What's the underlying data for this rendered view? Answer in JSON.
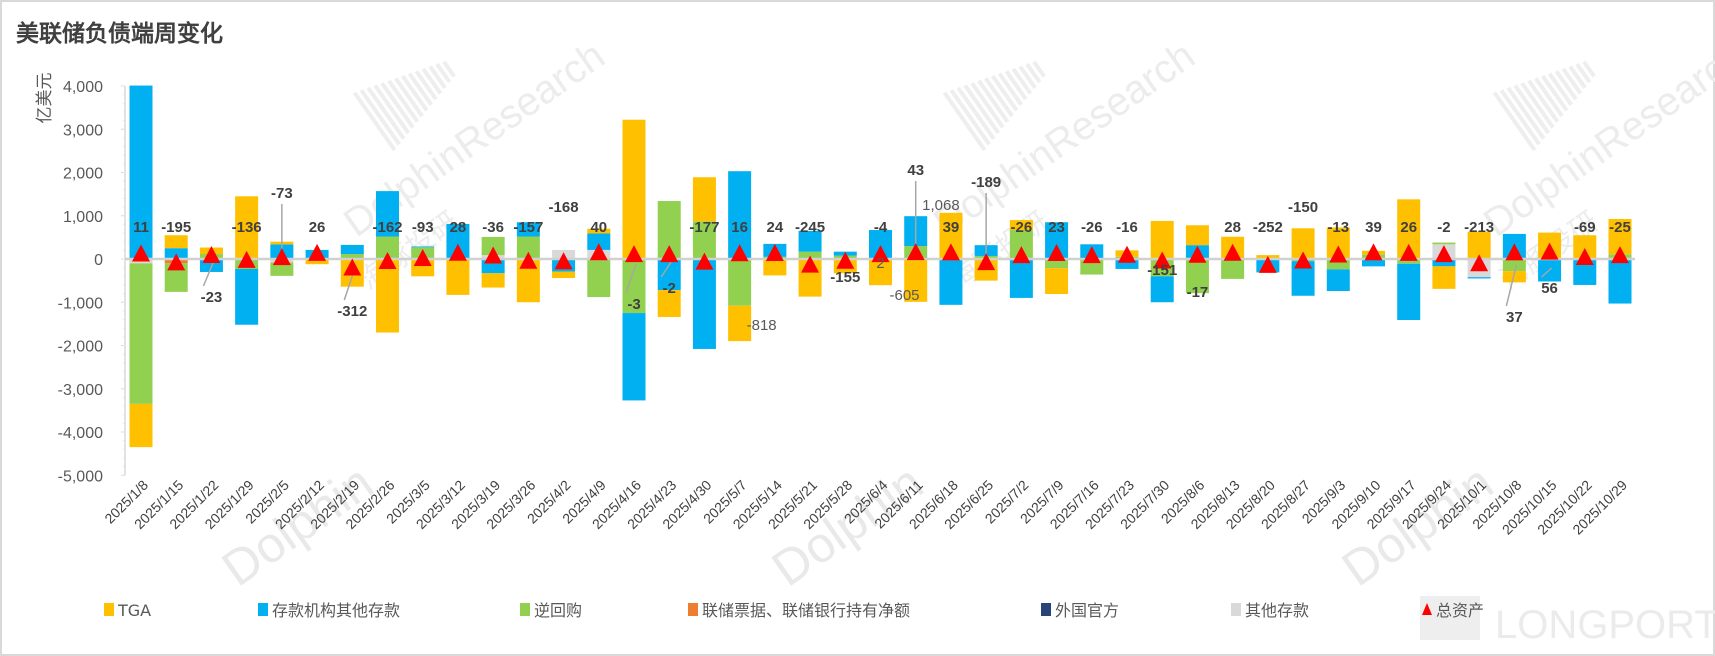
{
  "chart_data": {
    "type": "bar",
    "stacked": true,
    "title": "美联储负债端周变化",
    "ylabel": "亿美元",
    "xlabel": "",
    "ylim": [
      -5000,
      4000
    ],
    "yticks": [
      4000,
      3000,
      2000,
      1000,
      0,
      -1000,
      -2000,
      -3000,
      -4000,
      -5000
    ],
    "ytick_labels": [
      "4,000",
      "3,000",
      "2,000",
      "1,000",
      "0",
      "-1,000",
      "-2,000",
      "-3,000",
      "-4,000",
      "-5,000"
    ],
    "legend_position": "bottom",
    "categories": [
      "2025/1/8",
      "2025/1/15",
      "2025/1/22",
      "2025/1/29",
      "2025/2/5",
      "2025/2/12",
      "2025/2/19",
      "2025/2/26",
      "2025/3/5",
      "2025/3/12",
      "2025/3/19",
      "2025/3/26",
      "2025/4/2",
      "2025/4/9",
      "2025/4/16",
      "2025/4/23",
      "2025/4/30",
      "2025/5/7",
      "2025/5/14",
      "2025/5/21",
      "2025/5/28",
      "2025/6/4",
      "2025/6/11",
      "2025/6/18",
      "2025/6/25",
      "2025/7/2",
      "2025/7/9",
      "2025/7/16",
      "2025/7/23",
      "2025/7/30",
      "2025/8/6",
      "2025/8/13",
      "2025/8/20",
      "2025/8/27",
      "2025/9/3",
      "2025/9/10",
      "2025/9/17",
      "2025/9/24",
      "2025/10/1",
      "2025/10/8",
      "2025/10/15",
      "2025/10/22",
      "2025/10/29"
    ],
    "series": [
      {
        "name": "TGA",
        "color": "#FFC000",
        "values": [
          -1000,
          300,
          150,
          1450,
          60,
          -120,
          -640,
          -1700,
          -400,
          -830,
          -330,
          -1000,
          -150,
          110,
          3220,
          -620,
          1020,
          -818,
          -380,
          -870,
          -330,
          -605,
          -990,
          1068,
          -500,
          230,
          -600,
          0,
          150,
          880,
          460,
          515,
          90,
          710,
          730,
          80,
          1380,
          -520,
          630,
          -260,
          610,
          550,
          815
        ]
      },
      {
        "name": "存款机构其他存款",
        "color": "#00B0F0",
        "values": [
          4010,
          250,
          -300,
          -1290,
          340,
          210,
          210,
          1050,
          20,
          810,
          -330,
          330,
          -290,
          380,
          -2020,
          -720,
          -2080,
          2030,
          300,
          480,
          90,
          670,
          690,
          -1060,
          250,
          -900,
          850,
          340,
          -230,
          -600,
          320,
          0,
          -310,
          -800,
          -500,
          -170,
          -1300,
          -170,
          -30,
          580,
          -520,
          -600,
          -1030
        ]
      },
      {
        "name": "逆回购",
        "color": "#92D050",
        "values": [
          -3250,
          -660,
          115,
          -230,
          -310,
          0,
          115,
          520,
          270,
          0,
          420,
          520,
          0,
          -880,
          -1250,
          1340,
          870,
          -1080,
          50,
          170,
          80,
          0,
          300,
          0,
          70,
          670,
          -210,
          -360,
          50,
          -400,
          -790,
          -460,
          0,
          -50,
          -240,
          110,
          -110,
          40,
          0,
          -280,
          0,
          0,
          110
        ]
      },
      {
        "name": "联储票据、联储银行持有净额",
        "color": "#ED7D31",
        "values": [
          0,
          -100,
          0,
          0,
          0,
          0,
          0,
          0,
          0,
          0,
          0,
          0,
          0,
          0,
          0,
          0,
          0,
          0,
          0,
          0,
          0,
          0,
          0,
          0,
          0,
          0,
          0,
          0,
          0,
          0,
          0,
          0,
          0,
          0,
          0,
          0,
          0,
          0,
          0,
          0,
          0,
          0,
          0
        ]
      },
      {
        "name": "外国官方",
        "color": "#264478",
        "values": [
          0,
          0,
          0,
          0,
          0,
          0,
          0,
          0,
          0,
          0,
          0,
          0,
          0,
          0,
          0,
          0,
          0,
          0,
          0,
          0,
          0,
          0,
          0,
          0,
          0,
          0,
          0,
          0,
          0,
          0,
          0,
          0,
          0,
          0,
          0,
          0,
          0,
          0,
          0,
          0,
          0,
          0,
          0
        ]
      },
      {
        "name": "其他存款",
        "color": "#D9D9D9",
        "values": [
          -100,
          0,
          0,
          0,
          -80,
          0,
          0,
          0,
          0,
          0,
          90,
          0,
          210,
          210,
          0,
          0,
          0,
          0,
          0,
          0,
          0,
          0,
          0,
          0,
          0,
          0,
          0,
          0,
          0,
          0,
          0,
          0,
          0,
          0,
          0,
          0,
          0,
          340,
          -420,
          0,
          0,
          0,
          0
        ]
      }
    ],
    "total_series": {
      "name": "总资产",
      "color": "#FF0000",
      "marker": "triangle",
      "values": [
        11,
        -195,
        -23,
        -136,
        -73,
        26,
        -312,
        -162,
        -93,
        28,
        -36,
        -157,
        -168,
        40,
        -3,
        -2,
        -177,
        16,
        24,
        -245,
        -155,
        -4,
        43,
        39,
        -189,
        -26,
        23,
        -26,
        -16,
        -151,
        -17,
        28,
        -252,
        -150,
        -13,
        39,
        26,
        -2,
        -213,
        37,
        56,
        -69,
        -25
      ],
      "labels": [
        "11",
        "-195",
        "-23",
        "-136",
        "-73",
        "26",
        "-312",
        "-162",
        "-93",
        "28",
        "-36",
        "-157",
        "-168",
        "40",
        "-3",
        "-2",
        "-177",
        "16",
        "24",
        "-245",
        "-155",
        "-4",
        "43",
        "39",
        "-189",
        "-26",
        "23",
        "-26",
        "-16",
        "-151",
        "-17",
        "28",
        "-252",
        "-150",
        "-13",
        "39",
        "26",
        "-2",
        "-213",
        "37",
        "56",
        "-69",
        "-25"
      ]
    },
    "annotations": [
      {
        "category": "2025/5/7",
        "series": "TGA",
        "text": "-818"
      },
      {
        "category": "2025/6/4",
        "series": "TGA",
        "text": "-605"
      },
      {
        "category": "2025/6/4",
        "series": "其他",
        "text": "2"
      },
      {
        "category": "2025/6/18",
        "series": "TGA",
        "text": "1,068"
      }
    ]
  },
  "watermarks": {
    "brand_en": "DolphinResearch",
    "brand_cn": "海豚投研",
    "corner": "LONGPORT"
  }
}
